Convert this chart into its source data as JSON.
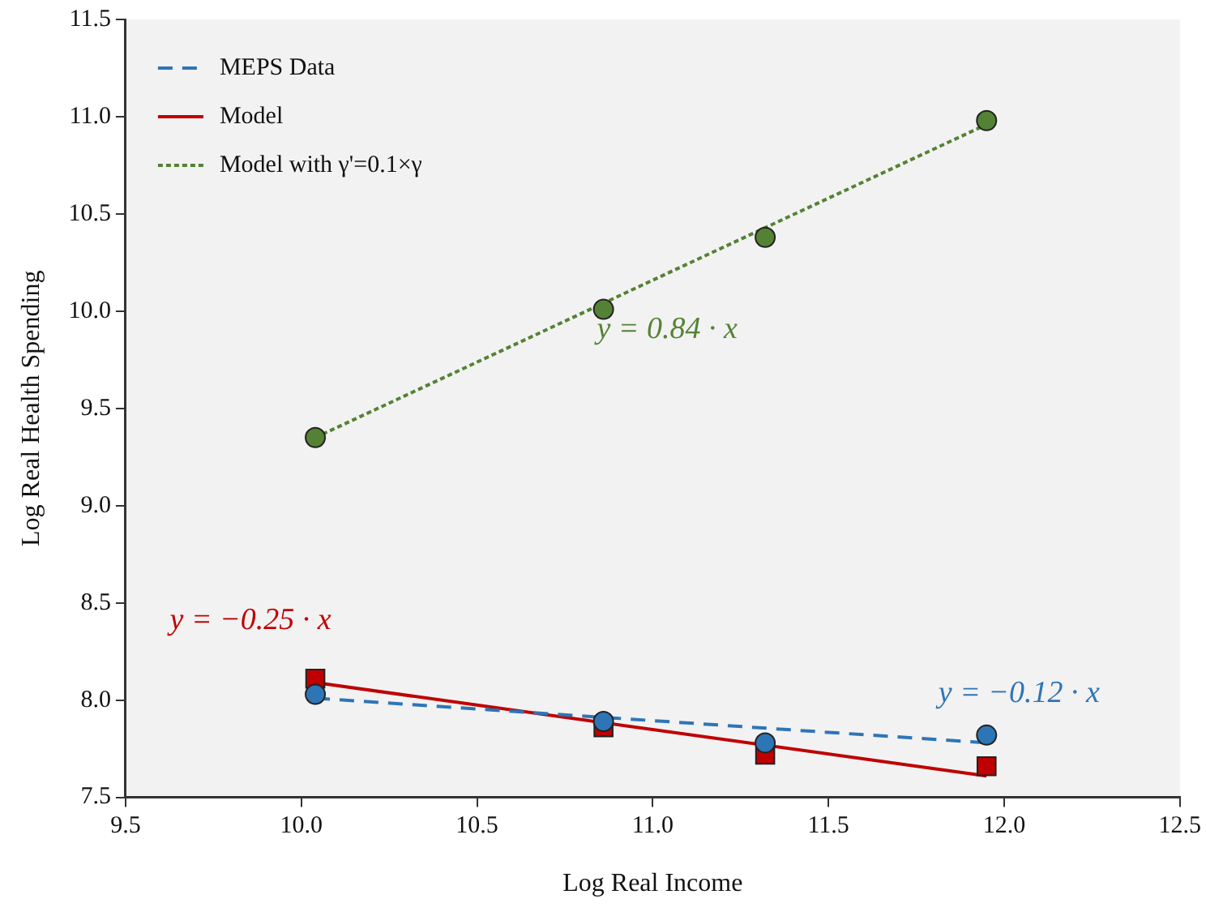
{
  "chart_data": {
    "type": "scatter",
    "xlabel": "Log Real Income",
    "ylabel": "Log Real Health Spending",
    "x": [
      10.04,
      10.86,
      11.32,
      11.95
    ],
    "series": [
      {
        "name": "MEPS Data",
        "type": "line",
        "color": "#2e75b6",
        "values": [
          8.01,
          null,
          null,
          7.78
        ],
        "line_style": "dashed",
        "marker": "none"
      },
      {
        "name": "Model",
        "type": "line",
        "color": "#c00000",
        "values": [
          8.09,
          null,
          null,
          7.61
        ],
        "line_style": "solid",
        "marker": "none"
      },
      {
        "name": "Model with γ'=0.1×γ",
        "type": "line",
        "color": "#548235",
        "values": [
          9.35,
          null,
          null,
          10.96
        ],
        "line_style": "dotted",
        "marker": "none"
      },
      {
        "type": "scatter",
        "color": "#2e75b6",
        "values": [
          8.03,
          7.89,
          7.78,
          7.82
        ],
        "marker": "circle"
      },
      {
        "type": "scatter",
        "color": "#c00000",
        "values": [
          8.11,
          7.86,
          7.72,
          7.66
        ],
        "marker": "square"
      },
      {
        "type": "scatter",
        "color": "#548235",
        "values": [
          9.35,
          10.01,
          10.38,
          10.98
        ],
        "marker": "circle"
      }
    ],
    "annotations": [
      "y = −0.12 · x",
      "y = −0.25 · x",
      "y = 0.84 · x"
    ],
    "xlim": [
      9.5,
      12.5
    ],
    "xticks": [
      9.5,
      {
        "value": 10,
        "label": "10.0"
      },
      10.5,
      {
        "value": 11,
        "label": "11.0"
      },
      11.5,
      {
        "value": 12,
        "label": "12.0"
      },
      12.5
    ],
    "ylim": [
      7.5,
      11.5
    ],
    "yticks": [
      7.5,
      {
        "value": 8,
        "label": "8.0"
      },
      8.5,
      {
        "value": 9,
        "label": "9.0"
      },
      9.5,
      {
        "value": 10,
        "label": "10.0"
      },
      10.5,
      {
        "value": 11,
        "label": "11.0"
      },
      11.5
    ],
    "grid": false,
    "legend": "top left"
  }
}
